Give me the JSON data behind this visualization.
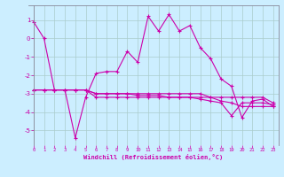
{
  "xlabel": "Windchill (Refroidissement éolien,°C)",
  "bg_color": "#cceeff",
  "line_color": "#cc00aa",
  "grid_color": "#aacccc",
  "axis_color": "#888899",
  "x_ticks": [
    0,
    1,
    2,
    3,
    4,
    5,
    6,
    7,
    8,
    9,
    10,
    11,
    12,
    13,
    14,
    15,
    16,
    17,
    18,
    19,
    20,
    21,
    22,
    23
  ],
  "y_ticks": [
    -5,
    -4,
    -3,
    -2,
    -1,
    0,
    1
  ],
  "ylim": [
    -5.8,
    1.8
  ],
  "xlim": [
    -0.5,
    23.5
  ],
  "series": [
    [
      0.9,
      0.0,
      -2.8,
      -2.8,
      -5.4,
      -3.2,
      -1.9,
      -1.8,
      -1.8,
      -0.7,
      -1.3,
      1.2,
      0.4,
      1.3,
      0.4,
      0.7,
      -0.5,
      -1.1,
      -2.2,
      -2.6,
      -4.3,
      -3.4,
      -3.3,
      -3.7
    ],
    [
      -2.8,
      -2.8,
      -2.8,
      -2.8,
      -2.8,
      -2.8,
      -3.2,
      -3.2,
      -3.2,
      -3.2,
      -3.2,
      -3.2,
      -3.2,
      -3.2,
      -3.2,
      -3.2,
      -3.2,
      -3.2,
      -3.2,
      -3.2,
      -3.2,
      -3.2,
      -3.2,
      -3.5
    ],
    [
      -2.8,
      -2.8,
      -2.8,
      -2.8,
      -2.8,
      -2.8,
      -3.0,
      -3.0,
      -3.0,
      -3.0,
      -3.0,
      -3.0,
      -3.0,
      -3.0,
      -3.0,
      -3.0,
      -3.0,
      -3.2,
      -3.4,
      -3.5,
      -3.7,
      -3.7,
      -3.7,
      -3.7
    ],
    [
      -2.8,
      -2.8,
      -2.8,
      -2.8,
      -2.8,
      -2.8,
      -3.0,
      -3.0,
      -3.0,
      -3.0,
      -3.1,
      -3.1,
      -3.1,
      -3.2,
      -3.2,
      -3.2,
      -3.3,
      -3.4,
      -3.5,
      -4.2,
      -3.5,
      -3.5,
      -3.5,
      -3.6
    ]
  ]
}
